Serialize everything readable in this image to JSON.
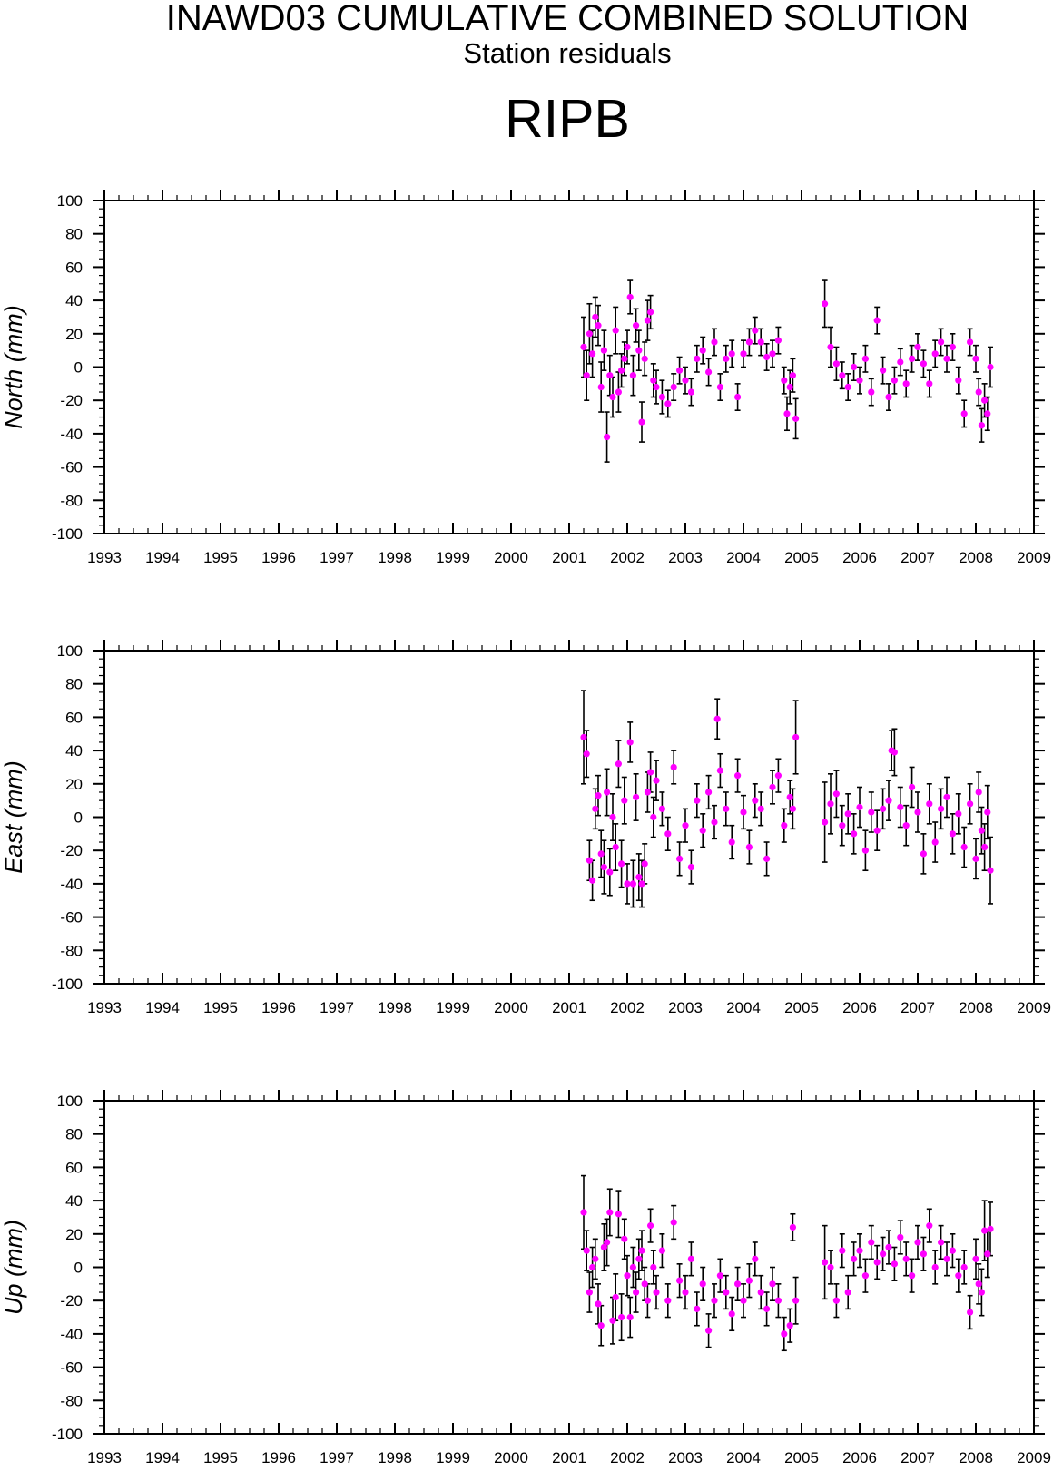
{
  "header": {
    "title": "INAWD03 CUMULATIVE COMBINED SOLUTION",
    "subtitle": "Station residuals",
    "station": "RIPB"
  },
  "colors": {
    "marker": "#ff00ff",
    "errorbar": "#000000",
    "axis": "#000000"
  },
  "chart_data": [
    {
      "type": "scatter",
      "ylabel": "North (mm)",
      "xlim": [
        1993,
        2009
      ],
      "ylim": [
        -100,
        100
      ],
      "x_ticks": [
        1993,
        1994,
        1995,
        1996,
        1997,
        1998,
        1999,
        2000,
        2001,
        2002,
        2003,
        2004,
        2005,
        2006,
        2007,
        2008,
        2009
      ],
      "y_ticks": [
        -100,
        -80,
        -60,
        -40,
        -20,
        0,
        20,
        40,
        60,
        80,
        100
      ],
      "grid": false,
      "series": [
        {
          "x": [
            2001.25,
            2001.3,
            2001.35,
            2001.4,
            2001.45,
            2001.5,
            2001.55,
            2001.6,
            2001.65,
            2001.7,
            2001.75,
            2001.8,
            2001.85,
            2001.9,
            2001.95,
            2002.0,
            2002.05,
            2002.1,
            2002.15,
            2002.2,
            2002.25,
            2002.3,
            2002.35,
            2002.4,
            2002.45,
            2002.5,
            2002.6,
            2002.7,
            2002.8,
            2002.9,
            2003.0,
            2003.1,
            2003.2,
            2003.3,
            2003.4,
            2003.5,
            2003.6,
            2003.7,
            2003.8,
            2003.9,
            2004.0,
            2004.1,
            2004.2,
            2004.3,
            2004.4,
            2004.5,
            2004.6,
            2004.7,
            2004.75,
            2004.8,
            2004.85,
            2004.9,
            2005.4,
            2005.5,
            2005.6,
            2005.7,
            2005.8,
            2005.9,
            2006.0,
            2006.1,
            2006.2,
            2006.3,
            2006.4,
            2006.5,
            2006.6,
            2006.7,
            2006.8,
            2006.9,
            2007.0,
            2007.1,
            2007.2,
            2007.3,
            2007.4,
            2007.5,
            2007.6,
            2007.7,
            2007.8,
            2007.9,
            2008.0,
            2008.05,
            2008.1,
            2008.15,
            2008.2,
            2008.25
          ],
          "y": [
            12,
            -5,
            20,
            8,
            30,
            25,
            -12,
            10,
            -42,
            -5,
            -18,
            22,
            -15,
            -2,
            5,
            12,
            42,
            -5,
            25,
            10,
            -33,
            5,
            28,
            33,
            -8,
            -12,
            -18,
            -22,
            -12,
            -2,
            -8,
            -15,
            5,
            10,
            -3,
            15,
            -12,
            5,
            8,
            -18,
            8,
            15,
            22,
            15,
            6,
            8,
            16,
            -8,
            -28,
            -12,
            -5,
            -31,
            38,
            12,
            2,
            -5,
            -12,
            0,
            -8,
            5,
            -15,
            28,
            -2,
            -18,
            -8,
            3,
            -10,
            5,
            12,
            2,
            -10,
            8,
            15,
            5,
            12,
            -8,
            -28,
            15,
            5,
            -15,
            -35,
            -20,
            -28,
            0
          ],
          "err": [
            18,
            15,
            18,
            14,
            12,
            12,
            15,
            12,
            15,
            12,
            12,
            14,
            12,
            10,
            10,
            10,
            10,
            12,
            10,
            12,
            12,
            10,
            12,
            10,
            10,
            10,
            10,
            8,
            8,
            8,
            8,
            8,
            8,
            8,
            8,
            8,
            8,
            8,
            8,
            8,
            8,
            8,
            8,
            8,
            8,
            8,
            8,
            8,
            10,
            10,
            10,
            12,
            14,
            12,
            10,
            8,
            8,
            8,
            8,
            8,
            8,
            8,
            8,
            8,
            8,
            8,
            8,
            8,
            8,
            8,
            8,
            8,
            8,
            8,
            8,
            8,
            8,
            8,
            8,
            8,
            10,
            10,
            10,
            12
          ]
        }
      ]
    },
    {
      "type": "scatter",
      "ylabel": "East (mm)",
      "xlim": [
        1993,
        2009
      ],
      "ylim": [
        -100,
        100
      ],
      "x_ticks": [
        1993,
        1994,
        1995,
        1996,
        1997,
        1998,
        1999,
        2000,
        2001,
        2002,
        2003,
        2004,
        2005,
        2006,
        2007,
        2008,
        2009
      ],
      "y_ticks": [
        -100,
        -80,
        -60,
        -40,
        -20,
        0,
        20,
        40,
        60,
        80,
        100
      ],
      "grid": false,
      "series": [
        {
          "x": [
            2001.25,
            2001.3,
            2001.35,
            2001.4,
            2001.45,
            2001.5,
            2001.55,
            2001.6,
            2001.65,
            2001.7,
            2001.75,
            2001.8,
            2001.85,
            2001.9,
            2001.95,
            2002.0,
            2002.05,
            2002.1,
            2002.15,
            2002.2,
            2002.25,
            2002.3,
            2002.35,
            2002.4,
            2002.45,
            2002.5,
            2002.6,
            2002.7,
            2002.8,
            2002.9,
            2003.0,
            2003.1,
            2003.2,
            2003.3,
            2003.4,
            2003.5,
            2003.55,
            2003.6,
            2003.7,
            2003.8,
            2003.9,
            2004.0,
            2004.1,
            2004.2,
            2004.3,
            2004.4,
            2004.5,
            2004.6,
            2004.7,
            2004.8,
            2004.85,
            2004.9,
            2005.4,
            2005.5,
            2005.6,
            2005.7,
            2005.8,
            2005.9,
            2006.0,
            2006.1,
            2006.2,
            2006.3,
            2006.4,
            2006.5,
            2006.55,
            2006.6,
            2006.7,
            2006.8,
            2006.9,
            2007.0,
            2007.1,
            2007.2,
            2007.3,
            2007.4,
            2007.5,
            2007.6,
            2007.7,
            2007.8,
            2007.9,
            2008.0,
            2008.05,
            2008.1,
            2008.15,
            2008.2,
            2008.25
          ],
          "y": [
            48,
            38,
            -26,
            -38,
            5,
            13,
            -22,
            -30,
            15,
            -33,
            0,
            -18,
            32,
            -28,
            10,
            -40,
            45,
            -40,
            12,
            -36,
            -40,
            -28,
            15,
            27,
            0,
            22,
            5,
            -10,
            30,
            -25,
            -5,
            -30,
            10,
            -8,
            15,
            -3,
            59,
            28,
            5,
            -15,
            25,
            3,
            -18,
            10,
            5,
            -25,
            18,
            25,
            -5,
            12,
            5,
            48,
            -3,
            8,
            14,
            -5,
            2,
            -10,
            6,
            -20,
            3,
            -8,
            5,
            10,
            40,
            39,
            6,
            -5,
            18,
            3,
            -22,
            8,
            -15,
            5,
            12,
            -10,
            2,
            -18,
            8,
            -25,
            15,
            -8,
            -18,
            3,
            -32
          ],
          "err": [
            28,
            14,
            12,
            12,
            12,
            12,
            14,
            16,
            14,
            14,
            14,
            14,
            14,
            14,
            14,
            12,
            12,
            14,
            14,
            14,
            14,
            12,
            12,
            12,
            12,
            12,
            10,
            10,
            10,
            10,
            10,
            10,
            10,
            10,
            10,
            10,
            12,
            10,
            10,
            10,
            10,
            10,
            10,
            10,
            10,
            10,
            10,
            10,
            10,
            10,
            12,
            22,
            24,
            18,
            14,
            12,
            12,
            12,
            12,
            12,
            12,
            12,
            12,
            12,
            12,
            14,
            12,
            12,
            12,
            12,
            12,
            12,
            12,
            12,
            12,
            12,
            12,
            12,
            12,
            12,
            12,
            14,
            14,
            16,
            20
          ]
        }
      ]
    },
    {
      "type": "scatter",
      "ylabel": "Up (mm)",
      "xlim": [
        1993,
        2009
      ],
      "ylim": [
        -100,
        100
      ],
      "x_ticks": [
        1993,
        1994,
        1995,
        1996,
        1997,
        1998,
        1999,
        2000,
        2001,
        2002,
        2003,
        2004,
        2005,
        2006,
        2007,
        2008,
        2009
      ],
      "y_ticks": [
        -100,
        -80,
        -60,
        -40,
        -20,
        0,
        20,
        40,
        60,
        80,
        100
      ],
      "grid": false,
      "series": [
        {
          "x": [
            2001.25,
            2001.3,
            2001.35,
            2001.4,
            2001.45,
            2001.5,
            2001.55,
            2001.6,
            2001.65,
            2001.7,
            2001.75,
            2001.8,
            2001.85,
            2001.9,
            2001.95,
            2002.0,
            2002.05,
            2002.1,
            2002.15,
            2002.2,
            2002.25,
            2002.3,
            2002.35,
            2002.4,
            2002.45,
            2002.5,
            2002.6,
            2002.7,
            2002.8,
            2002.9,
            2003.0,
            2003.1,
            2003.2,
            2003.3,
            2003.4,
            2003.5,
            2003.6,
            2003.7,
            2003.8,
            2003.9,
            2004.0,
            2004.1,
            2004.2,
            2004.3,
            2004.4,
            2004.5,
            2004.6,
            2004.7,
            2004.8,
            2004.85,
            2004.9,
            2005.4,
            2005.5,
            2005.6,
            2005.7,
            2005.8,
            2005.9,
            2006.0,
            2006.1,
            2006.2,
            2006.3,
            2006.4,
            2006.5,
            2006.6,
            2006.7,
            2006.8,
            2006.9,
            2007.0,
            2007.1,
            2007.2,
            2007.3,
            2007.4,
            2007.5,
            2007.6,
            2007.7,
            2007.8,
            2007.9,
            2008.0,
            2008.05,
            2008.1,
            2008.15,
            2008.2,
            2008.25
          ],
          "y": [
            33,
            10,
            -15,
            0,
            5,
            -22,
            -35,
            12,
            15,
            33,
            -32,
            -18,
            32,
            -30,
            17,
            -5,
            -30,
            0,
            -15,
            5,
            10,
            -10,
            -20,
            25,
            0,
            -15,
            10,
            -20,
            27,
            -8,
            -15,
            5,
            -25,
            -10,
            -38,
            -20,
            -5,
            -15,
            -28,
            -10,
            -20,
            -8,
            5,
            -15,
            -25,
            -10,
            -20,
            -40,
            -35,
            24,
            -20,
            3,
            0,
            -20,
            10,
            -15,
            5,
            10,
            -5,
            15,
            3,
            8,
            12,
            2,
            18,
            5,
            -5,
            15,
            8,
            25,
            0,
            15,
            5,
            10,
            -5,
            0,
            -27,
            5,
            -10,
            -15,
            22,
            8,
            23
          ],
          "err": [
            22,
            12,
            12,
            12,
            12,
            12,
            12,
            14,
            14,
            14,
            14,
            14,
            14,
            14,
            12,
            12,
            12,
            12,
            12,
            12,
            12,
            10,
            10,
            10,
            10,
            10,
            10,
            10,
            10,
            10,
            10,
            10,
            10,
            10,
            10,
            10,
            10,
            10,
            10,
            10,
            10,
            10,
            10,
            10,
            10,
            10,
            10,
            10,
            10,
            8,
            14,
            22,
            10,
            10,
            10,
            10,
            10,
            10,
            10,
            10,
            10,
            10,
            10,
            10,
            10,
            10,
            10,
            10,
            10,
            10,
            10,
            10,
            10,
            10,
            10,
            10,
            10,
            12,
            12,
            14,
            18,
            14,
            16
          ]
        }
      ]
    }
  ]
}
